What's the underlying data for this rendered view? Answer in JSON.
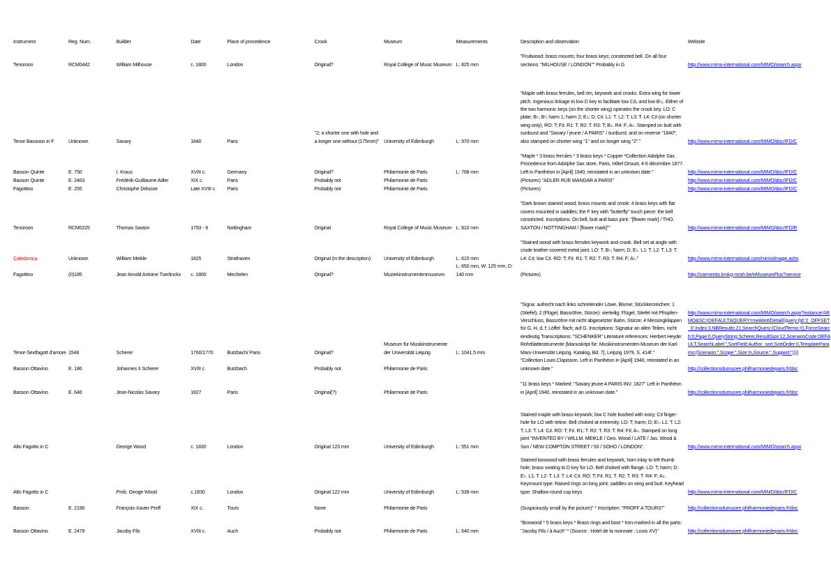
{
  "columns": [
    "Instrument",
    "Reg. Num.",
    "Builder",
    "Date",
    "Place of procedence",
    "Crook",
    "Museum",
    "Measurements",
    "Description and observation",
    "Website"
  ],
  "link_color": "#0000ee",
  "rows": [
    {
      "instrument": "Tenoroon",
      "reg": "RCM0442",
      "builder": "William Milhouse",
      "date": "c. 1800",
      "place": "London",
      "crook": "Original?",
      "museum": "Royal College of Music Museum",
      "measurements": "L: 825 mm",
      "description": " \"Fruitwood; brass mounts; four brass keys; constricted bell. On all four sections: \"MILHOUSE / LONDON\"\" Probably in G",
      "website": "http://www.mimo-international.com/MIMO/search.aspx"
    },
    {
      "instrument": "Tenor Bassoon in F",
      "reg": "Unknown",
      "builder": "Savary",
      "date": "1840",
      "place": "Paris",
      "crook": "\"2; a shorter one with hole and a longer one without (175mm)\"",
      "museum": "University of Edimburgh",
      "measurements": "L: 970 mm",
      "description": "\"Maple with brass ferrules, bell rim, keywork and crooks. Extra wing for lower pitch. Ingenious linkage to low D key to facilitate low C♯₂ and low B♮₂. Either of the two harmonic keys (on the shorter wing) operates the crook key. LO: C plate; B♭; B♮; harm 1; harm 2; E♭; D; C♯. L1: T. L2: T. L3: T. L4: C♯ (on shorter wing only), RO: T; F♯. R1: T. R2: T. R3: T; B♭. R4: F; A♭. Stamped on butt with sunburst and \"Savary / jeune / A PARIS\" / sunburst; and on reverse \"1840\"; also stamped on shorter wing \"1\" and on longer wing \"2\".\"",
      "website": "http://www.mimo-international.com/MIMO/doc/IFD/C"
    },
    {
      "instrument": "Basson Quinte",
      "reg": "E. 750",
      "builder": "I. Kraus",
      "date": "XVIII c.",
      "place": "Germany",
      "crook": "Original?",
      "museum": "Philarmonie de Paris",
      "measurements": "L: 768 mm",
      "description": "\"Maple * 3 brass ferrules * 3 brass keys * Copper *Collection Adolphe Sax. Procedence from Adolphe Sax store, Paris, Hôtel Drouot, 4-6 décembre 1877. Left in Panthéon in [April] 1940, reinstated in an unknown date.\"",
      "website": "http://www.mimo-international.com/MIMO/doc/IFD/C"
    },
    {
      "instrument": "Basson Quinte",
      "reg": "E. 2463",
      "builder": "Frédérik-Guillaume Adler",
      "date": "XIX c.",
      "place": "Paris",
      "crook": "Probably not",
      "museum": "Philarmonie de Paris",
      "measurements": "",
      "description": "(Pictures) \"ADLER RUE MANDAR A PARIS\"",
      "website": "http://www.mimo-international.com/MIMO/doc/IFD/C"
    },
    {
      "instrument": "Fagottino",
      "reg": "E. 255",
      "builder": "Christophe Delusse",
      "date": "Late XVIII c.",
      "place": "Paris",
      "crook": "Probably not",
      "museum": "Philarmonie de Paris",
      "measurements": "",
      "description": "(Pictures)",
      "website": "http://www.mimo-international.com/MIMO/doc/IFD/C"
    },
    {
      "instrument": "Tenoroon",
      "reg": "RCM0225",
      "builder": "Thomas Saxton",
      "date": "1793 - 9",
      "place": "Nottingham",
      "crook": "Original",
      "museum": "Royal College of Music Museum",
      "measurements": "L: 810 mm",
      "description": "\"Dark brown stained wood; brass mounts and crook: 4 brass keys with flat covers mounted in saddles; the F key with \"butterfly\" touch piece: the bell constricted. Inscriptions: On bell, butt and bass joint: \"[flower mark] / THO. SAXTON / NOTTINGHAM / [flower mark]\"\"",
      "website": "http://www.mimo-international.com/MIMO/doc/IFD/R"
    },
    {
      "instrument": "Caledonica",
      "instrument_color": "#ff0000",
      "reg": "Unknown",
      "builder": "William Meikle",
      "date": "1825",
      "place": "Strathaven",
      "crook": "Original (in the description)",
      "museum": "University of Edimburgh",
      "measurements": "L: 615 mm",
      "description": "\"Stained wood with brass ferrules keywork and crook. Bell set at angle with crude leather-covered metal joint. LO: T; B♭; harm; D; E♭. L1: T. L2: T. L3: T. L4: C♯; low C♯. RO: T; F♯. R1: T. R2: T. R3: T. R4: F; A♭.\"",
      "website": "http://www.mimo-international.com/mimo/image.ashx"
    },
    {
      "instrument": "Fagottino",
      "reg": "(0)185",
      "builder": "Jean Arnold Antoine Tuerlinckx",
      "date": "c. 1800",
      "place": "Mechelen",
      "crook": "Original?",
      "museum": "Muziekinstrumentenmuseum",
      "measurements": "L: 650 mm, W: 125 mm, D: 140 mm",
      "description": "(Pictures)",
      "website": "http://carmentis.kmkg-mrah.be/eMuseumPlus?service"
    },
    {
      "instrument": "Tenor-Sextfagott d'amore",
      "reg": "1548",
      "builder": "Scherer",
      "date": "1760/1770",
      "place": "Butzbach/ Paris",
      "crook": "Original?",
      "museum": "Museum für Musikinstrumente der Universität Leipzig",
      "measurements": "L: 1041.5 mm",
      "description": "\"Signa: aufrecht nach links schreitender Löwe, Blume; Stückkerzeichen: 1 (Stiefel), 2 (Flügel, Bassröhre, Stürze); vierteilig: Flügel, Stiefel mit Pfropfen-Verschluss, Bassröhre mit nicht abgesetzter Bahn, Stürze; 4 Messingklappen für G, H, d, f; Löffel: flach; auf G. Inscriptions: Signatur an allen Teilen, nicht eindeutig Transcriptions: \"SCHENKER\" Literature references: Herbert Heyde: Rohrblattinstrumente [Manuskript für: Musikinstrumenten-Museum der Karl-Marx-Universität Leipzig. Katalog, Bd. 7], Leipzig 1979, S. 414f.\"",
      "website": "http://www.mimo-international.com/MIMO/search.aspx?instance=MIMO&SC=DEFAULT&QUERY=meikle#/Detail/(query:(Id:'2_OFFSET_0',Index:3,NBResults:21,SearchQuery:(CloudTerms:!(),ForceSearch:!t,Page:0,QueryString:Scherer,ResultSize:12,ScenarioCode:DEFAULT,SearchLabel:'',SortField:Author_sort,SortOrder:0,TemplateParams:(Scenario:'',Scope:'',Size:!n,Source:'',Support:''))))",
      "website_wrap": true
    },
    {
      "instrument": "Basson Ottavino",
      "reg": "E. 186",
      "builder": "Johannes II Scherer",
      "date": "XVIII c.",
      "place": "Butzbach",
      "crook": "Probably not",
      "museum": "Philarmonie de Paris",
      "measurements": "",
      "description": "\"Collection Louis Clapisson. Left in Panthéon in [April] 1940, reinstated in an unknown date.\"",
      "website": "http://collectionsdumusee.philharmoniedeparis.fr/doc"
    },
    {
      "instrument": "Basson Ottavino",
      "reg": "E. 646",
      "builder": "Jean-Nicolas Savary",
      "date": "1827",
      "place": "Paris",
      "crook": "Original(?)",
      "museum": "Philarmonie de Paris",
      "measurements": "",
      "description": "\"11 brass keys * Marked :\"Savary jeune A PARIS INV. 1827\" Left in Panthéon in [April] 1940, reinstated in an unknown date.\"",
      "website": "http://collectionsdumusee.philharmoniedeparis.fr/doc"
    },
    {
      "instrument": "Alto Fagotto in C",
      "reg": "",
      "builder": "George Wood",
      "date": "c. 1830",
      "place": "London",
      "crook": "Original 123 mm",
      "museum": "University of Edimburgh",
      "measurements": "L: 551 mm",
      "description": "Stained maple with brass keywork; low C hole bushed with ivory; C♯ finger-hole for LO with tetine. Bell choked at extremity. LO: T; harm; D; E♭. L1: T. L2: T. L3: T. L4: C♯. RO: T; F♯. R1: T. R2: T. R3: T. R4: F♯; A♭. Stamped on long joint \"INVENTED BY / WILLM. MEIKLE / Geo. Wood / LATE / Jas. Wood & Son / NEW COMPTON STREET / 50 / SOHO / LONDON\".",
      "website": "http://www.mimo-international.com/MIMO/search.aspx"
    },
    {
      "instrument": "Alto Fagotto in C",
      "reg": "",
      "builder": "Prob. Geoge Wood",
      "date": "c.1830",
      "place": "London",
      "crook": "Original 122 mm",
      "museum": "University of Edimburgh",
      "measurements": "L: 539 mm",
      "description": "Stained boxwood with brass ferrules and keywork, horn inlay to left thumb hole; brass seating to D key for LO. Bell choked with flange. LO: T; harm; D; E♭. L1: T. L2: T. L3: T. L4: C♯. RO: T; F♯. R1: T. R2: T. R3: T. R4: F; A♭. Keymount type: Raised rings on long joint; saddles on wing and butt. Keyhead type: Shallow round cup keys.",
      "website": "http://www.mimo-international.com/MIMO/doc/IFD/C"
    },
    {
      "instrument": "Basson",
      "reg": "E. 2190",
      "builder": "François-Xavier Proff",
      "date": "XIX c.",
      "place": "Tours",
      "crook": "None",
      "museum": "Philarmonie de Paris",
      "measurements": "",
      "description": "(Suspiciously small by the picture)\" * Inscription: \"PROFF A TOURS\"\"",
      "website": "http://collectionsdumusee.philharmoniedeparis.fr/doc"
    },
    {
      "instrument": "Basson Ottavino",
      "reg": "E. 2479",
      "builder": "Jacoby Fils",
      "date": "XVIII c.",
      "place": "Auch",
      "crook": "Probably not",
      "museum": "Philarmonie de Paris",
      "measurements": "L: 640 mm",
      "description": "\"Boxwood * 5 brass keys * Brass rings and boot * Iron-marked in all the parts: \"Jacoby Fils / à Auch\" * (Source : Hotel de la monnaie : Louis XV)\"",
      "website": "http://collectionsdumusee.philharmoniedeparis.fr/doc"
    }
  ]
}
